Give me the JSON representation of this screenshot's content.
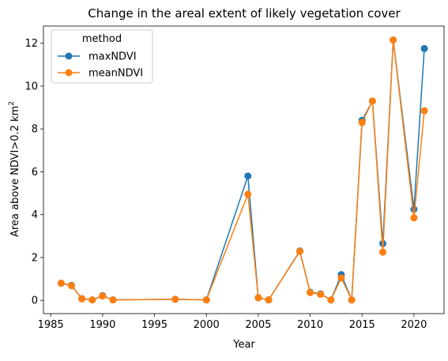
{
  "chart_data": {
    "type": "line",
    "title": "Change in the areal extent of likely vegetation cover",
    "xlabel": "Year",
    "ylabel_main": "Area above NDVI>0.2 km",
    "ylabel_sup": "2",
    "xlim": [
      1984.3,
      2022.9
    ],
    "ylim": [
      -0.62,
      12.8
    ],
    "xticks": [
      1985,
      1990,
      1995,
      2000,
      2005,
      2010,
      2015,
      2020
    ],
    "yticks": [
      0,
      2,
      4,
      6,
      8,
      10,
      12
    ],
    "grid": false,
    "legend": {
      "title": "method",
      "placement": "top-left"
    },
    "series": [
      {
        "name": "maxNDVI",
        "color": "#1f77b4",
        "points": [
          [
            1986,
            0.8
          ],
          [
            1987,
            0.7
          ],
          [
            1988,
            0.08
          ],
          [
            1989,
            0.02
          ],
          [
            1990,
            0.22
          ],
          [
            1991,
            0.02
          ],
          [
            1997,
            0.05
          ],
          [
            2000,
            0.02
          ],
          [
            2004,
            5.8
          ],
          [
            2005,
            0.12
          ],
          [
            2006,
            0.02
          ],
          [
            2009,
            2.3
          ],
          [
            2010,
            0.38
          ],
          [
            2011,
            0.3
          ],
          [
            2012,
            0.02
          ],
          [
            2013,
            1.2
          ],
          [
            2014,
            0.02
          ],
          [
            2015,
            8.4
          ],
          [
            2016,
            9.3
          ],
          [
            2017,
            2.65
          ],
          [
            2018,
            12.15
          ],
          [
            2020,
            4.25
          ],
          [
            2021,
            11.75
          ]
        ]
      },
      {
        "name": "meanNDVI",
        "color": "#ff7f0e",
        "points": [
          [
            1986,
            0.8
          ],
          [
            1987,
            0.68
          ],
          [
            1988,
            0.07
          ],
          [
            1989,
            0.02
          ],
          [
            1990,
            0.2
          ],
          [
            1991,
            0.02
          ],
          [
            1997,
            0.05
          ],
          [
            2000,
            0.02
          ],
          [
            2004,
            4.95
          ],
          [
            2005,
            0.12
          ],
          [
            2006,
            0.02
          ],
          [
            2009,
            2.28
          ],
          [
            2010,
            0.36
          ],
          [
            2011,
            0.28
          ],
          [
            2012,
            0.02
          ],
          [
            2013,
            1.05
          ],
          [
            2014,
            0.02
          ],
          [
            2015,
            8.3
          ],
          [
            2016,
            9.3
          ],
          [
            2017,
            2.25
          ],
          [
            2018,
            12.15
          ],
          [
            2020,
            3.85
          ],
          [
            2021,
            8.85
          ]
        ]
      }
    ]
  }
}
